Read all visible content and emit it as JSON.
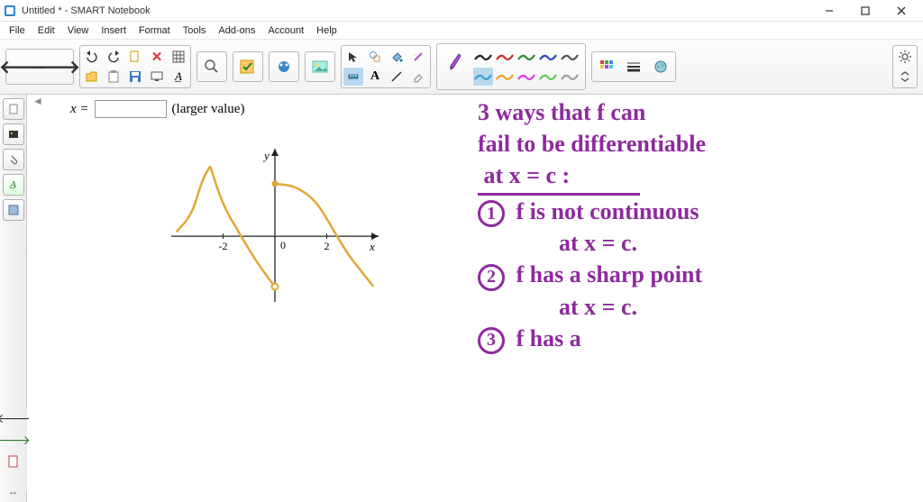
{
  "window": {
    "title": "Untitled * - SMART Notebook",
    "icon_color": "#2a8acb"
  },
  "menubar": [
    "File",
    "Edit",
    "View",
    "Insert",
    "Format",
    "Tools",
    "Add-ons",
    "Account",
    "Help"
  ],
  "toolbar": {
    "nav_prev": "←",
    "nav_next": "→"
  },
  "pen_palette": {
    "row1": [
      "#222222",
      "#c03030",
      "#2a8a3a",
      "#2a4ac0",
      "#555555"
    ],
    "row2": [
      "#3aa0e0",
      "#f0a030",
      "#e63ae6",
      "#60c860",
      "#a0a0a0"
    ]
  },
  "sidebar_icons": [
    "page",
    "gallery",
    "attach",
    "text-format",
    "properties"
  ],
  "math_block": {
    "var": "x =",
    "label": "(larger value)"
  },
  "graph": {
    "type": "function-plot",
    "x_ticks": [
      -2,
      0,
      2
    ],
    "x_range": [
      -4,
      4
    ],
    "y_range": [
      -3,
      4
    ],
    "axis_color": "#222222",
    "curve_color": "#e0a838",
    "curve_width": 2.5,
    "x_label": "x",
    "y_label": "y",
    "segments": [
      {
        "type": "curve",
        "points": [
          [
            -3.8,
            0.2
          ],
          [
            -3.2,
            1.0
          ],
          [
            -2.8,
            2.6
          ],
          [
            -2.5,
            3.2
          ]
        ]
      },
      {
        "type": "curve",
        "points": [
          [
            -2.5,
            3.2
          ],
          [
            -2.0,
            1.4
          ],
          [
            -1.4,
            0.2
          ],
          [
            -0.8,
            -1.0
          ],
          [
            -0.2,
            -2.0
          ],
          [
            0.0,
            -2.3
          ]
        ]
      },
      {
        "type": "curve",
        "points": [
          [
            0.0,
            2.4
          ],
          [
            0.8,
            2.3
          ],
          [
            1.6,
            1.6
          ],
          [
            2.2,
            0.4
          ],
          [
            2.8,
            -0.8
          ],
          [
            3.4,
            -1.7
          ],
          [
            3.8,
            -2.3
          ]
        ]
      }
    ],
    "open_point": [
      0,
      -2.3
    ],
    "closed_point": [
      0,
      2.4
    ]
  },
  "handwriting": {
    "color": "#8e2a9e",
    "lines": [
      "3 ways that f can",
      "fail to be differentiable"
    ],
    "at_line": "at x = c :",
    "items": [
      {
        "num": "1",
        "text": "f is not continuous",
        "sub": "at x = c."
      },
      {
        "num": "2",
        "text": "f has a sharp point",
        "sub": "at x = c."
      },
      {
        "num": "3",
        "text": "f has a",
        "sub": ""
      }
    ]
  }
}
